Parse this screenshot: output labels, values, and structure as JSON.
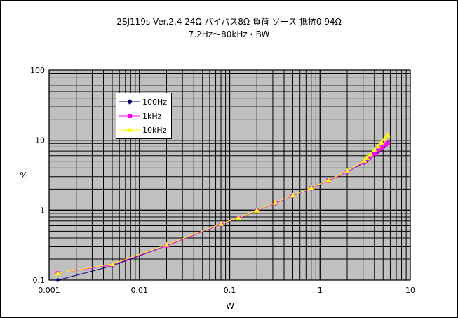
{
  "title": "2SJ119s Ver.2.4 24Ω バイパス8Ω 負荷 ソース 抵抗0.94Ω",
  "subtitle": "7.2Hz～80kHz・BW",
  "chart_data": {
    "type": "line",
    "title": "2SJ119s Ver.2.4 24Ω バイパス8Ω 負荷 ソース 抵抗0.94Ω",
    "subtitle": "7.2Hz～80kHz・BW",
    "xlabel": "W",
    "ylabel": "%",
    "xscale": "log",
    "yscale": "log",
    "xlim": [
      0.001,
      10
    ],
    "ylim": [
      0.1,
      100
    ],
    "x_ticks": [
      "0.001",
      "0.01",
      "0.1",
      "1",
      "10"
    ],
    "y_ticks": [
      "0.1",
      "1",
      "10",
      "100"
    ],
    "grid": true,
    "legend": "top-left",
    "plot_background": "#c0c0c0",
    "series": [
      {
        "name": "100Hz",
        "color": "#000080",
        "marker": "diamond",
        "points": [
          [
            0.00125,
            0.1
          ],
          [
            0.005,
            0.16
          ],
          [
            0.02,
            0.31
          ],
          [
            0.08,
            0.63
          ],
          [
            0.125,
            0.77
          ],
          [
            0.2,
            0.98
          ],
          [
            0.32,
            1.26
          ],
          [
            0.5,
            1.6
          ],
          [
            0.8,
            2.05
          ],
          [
            1.25,
            2.65
          ],
          [
            2.0,
            3.5
          ],
          [
            3.1,
            4.8
          ],
          [
            3.3,
            5.1
          ],
          [
            3.6,
            5.6
          ],
          [
            4.0,
            6.2
          ],
          [
            4.4,
            6.9
          ],
          [
            4.8,
            7.6
          ],
          [
            5.2,
            8.3
          ],
          [
            5.6,
            9.0
          ]
        ]
      },
      {
        "name": "1kHz",
        "color": "#ff00ff",
        "marker": "square",
        "points": [
          [
            0.00125,
            0.125
          ],
          [
            0.005,
            0.165
          ],
          [
            0.02,
            0.31
          ],
          [
            0.08,
            0.63
          ],
          [
            0.125,
            0.77
          ],
          [
            0.2,
            0.98
          ],
          [
            0.32,
            1.26
          ],
          [
            0.5,
            1.6
          ],
          [
            0.8,
            2.05
          ],
          [
            1.25,
            2.65
          ],
          [
            2.0,
            3.5
          ],
          [
            3.1,
            4.9
          ],
          [
            3.3,
            5.3
          ],
          [
            3.6,
            5.8
          ],
          [
            4.0,
            6.4
          ],
          [
            4.4,
            7.1
          ],
          [
            4.8,
            7.8
          ],
          [
            5.2,
            8.5
          ],
          [
            5.6,
            9.1
          ]
        ]
      },
      {
        "name": "10kHz",
        "color": "#ffff00",
        "marker": "triangle",
        "points": [
          [
            0.00125,
            0.125
          ],
          [
            0.005,
            0.17
          ],
          [
            0.02,
            0.32
          ],
          [
            0.08,
            0.64
          ],
          [
            0.125,
            0.78
          ],
          [
            0.2,
            0.99
          ],
          [
            0.32,
            1.28
          ],
          [
            0.5,
            1.62
          ],
          [
            0.8,
            2.08
          ],
          [
            1.25,
            2.7
          ],
          [
            2.0,
            3.6
          ],
          [
            3.1,
            5.1
          ],
          [
            3.3,
            5.6
          ],
          [
            3.6,
            6.3
          ],
          [
            4.0,
            7.2
          ],
          [
            4.4,
            8.2
          ],
          [
            4.8,
            9.3
          ],
          [
            5.2,
            10.5
          ],
          [
            5.6,
            11.8
          ]
        ]
      }
    ]
  }
}
